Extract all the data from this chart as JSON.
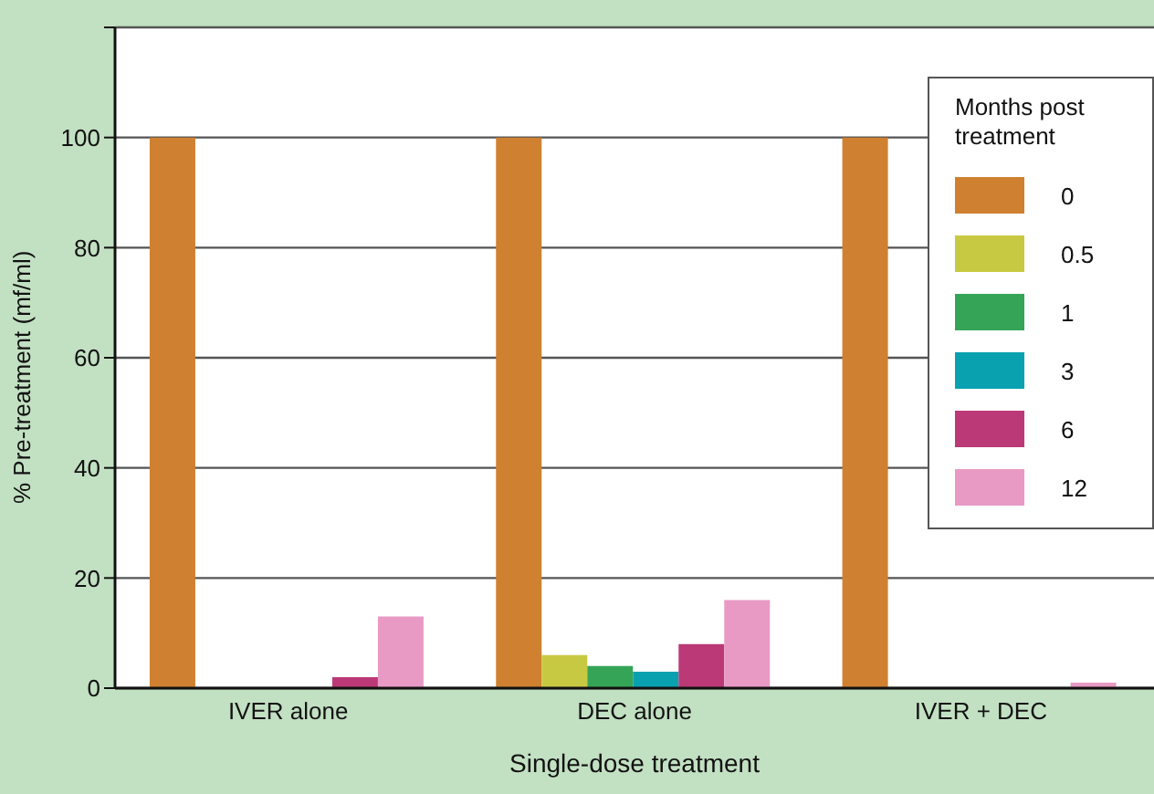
{
  "chart_data": {
    "type": "bar",
    "xlabel": "Single-dose treatment",
    "ylabel": "% Pre-treatment (mf/ml)",
    "legend_title": "Months post treatment",
    "categories": [
      "IVER alone",
      "DEC alone",
      "IVER + DEC"
    ],
    "series": [
      {
        "name": "0",
        "color": "#cf8030",
        "values": [
          100,
          100,
          100
        ]
      },
      {
        "name": "0.5",
        "color": "#c8c943",
        "values": [
          0,
          6,
          0
        ]
      },
      {
        "name": "1",
        "color": "#36a457",
        "values": [
          0,
          4,
          0
        ]
      },
      {
        "name": "3",
        "color": "#09a1b0",
        "values": [
          0,
          3,
          0
        ]
      },
      {
        "name": "6",
        "color": "#bb3977",
        "values": [
          2,
          8,
          0
        ]
      },
      {
        "name": "12",
        "color": "#e89ac4",
        "values": [
          13,
          16,
          1
        ]
      }
    ],
    "ylim": [
      0,
      120
    ],
    "yticks": [
      0,
      20,
      40,
      60,
      80,
      100,
      {
        "value": 120,
        "label": null
      }
    ],
    "grid": "y",
    "legend": "top right"
  }
}
